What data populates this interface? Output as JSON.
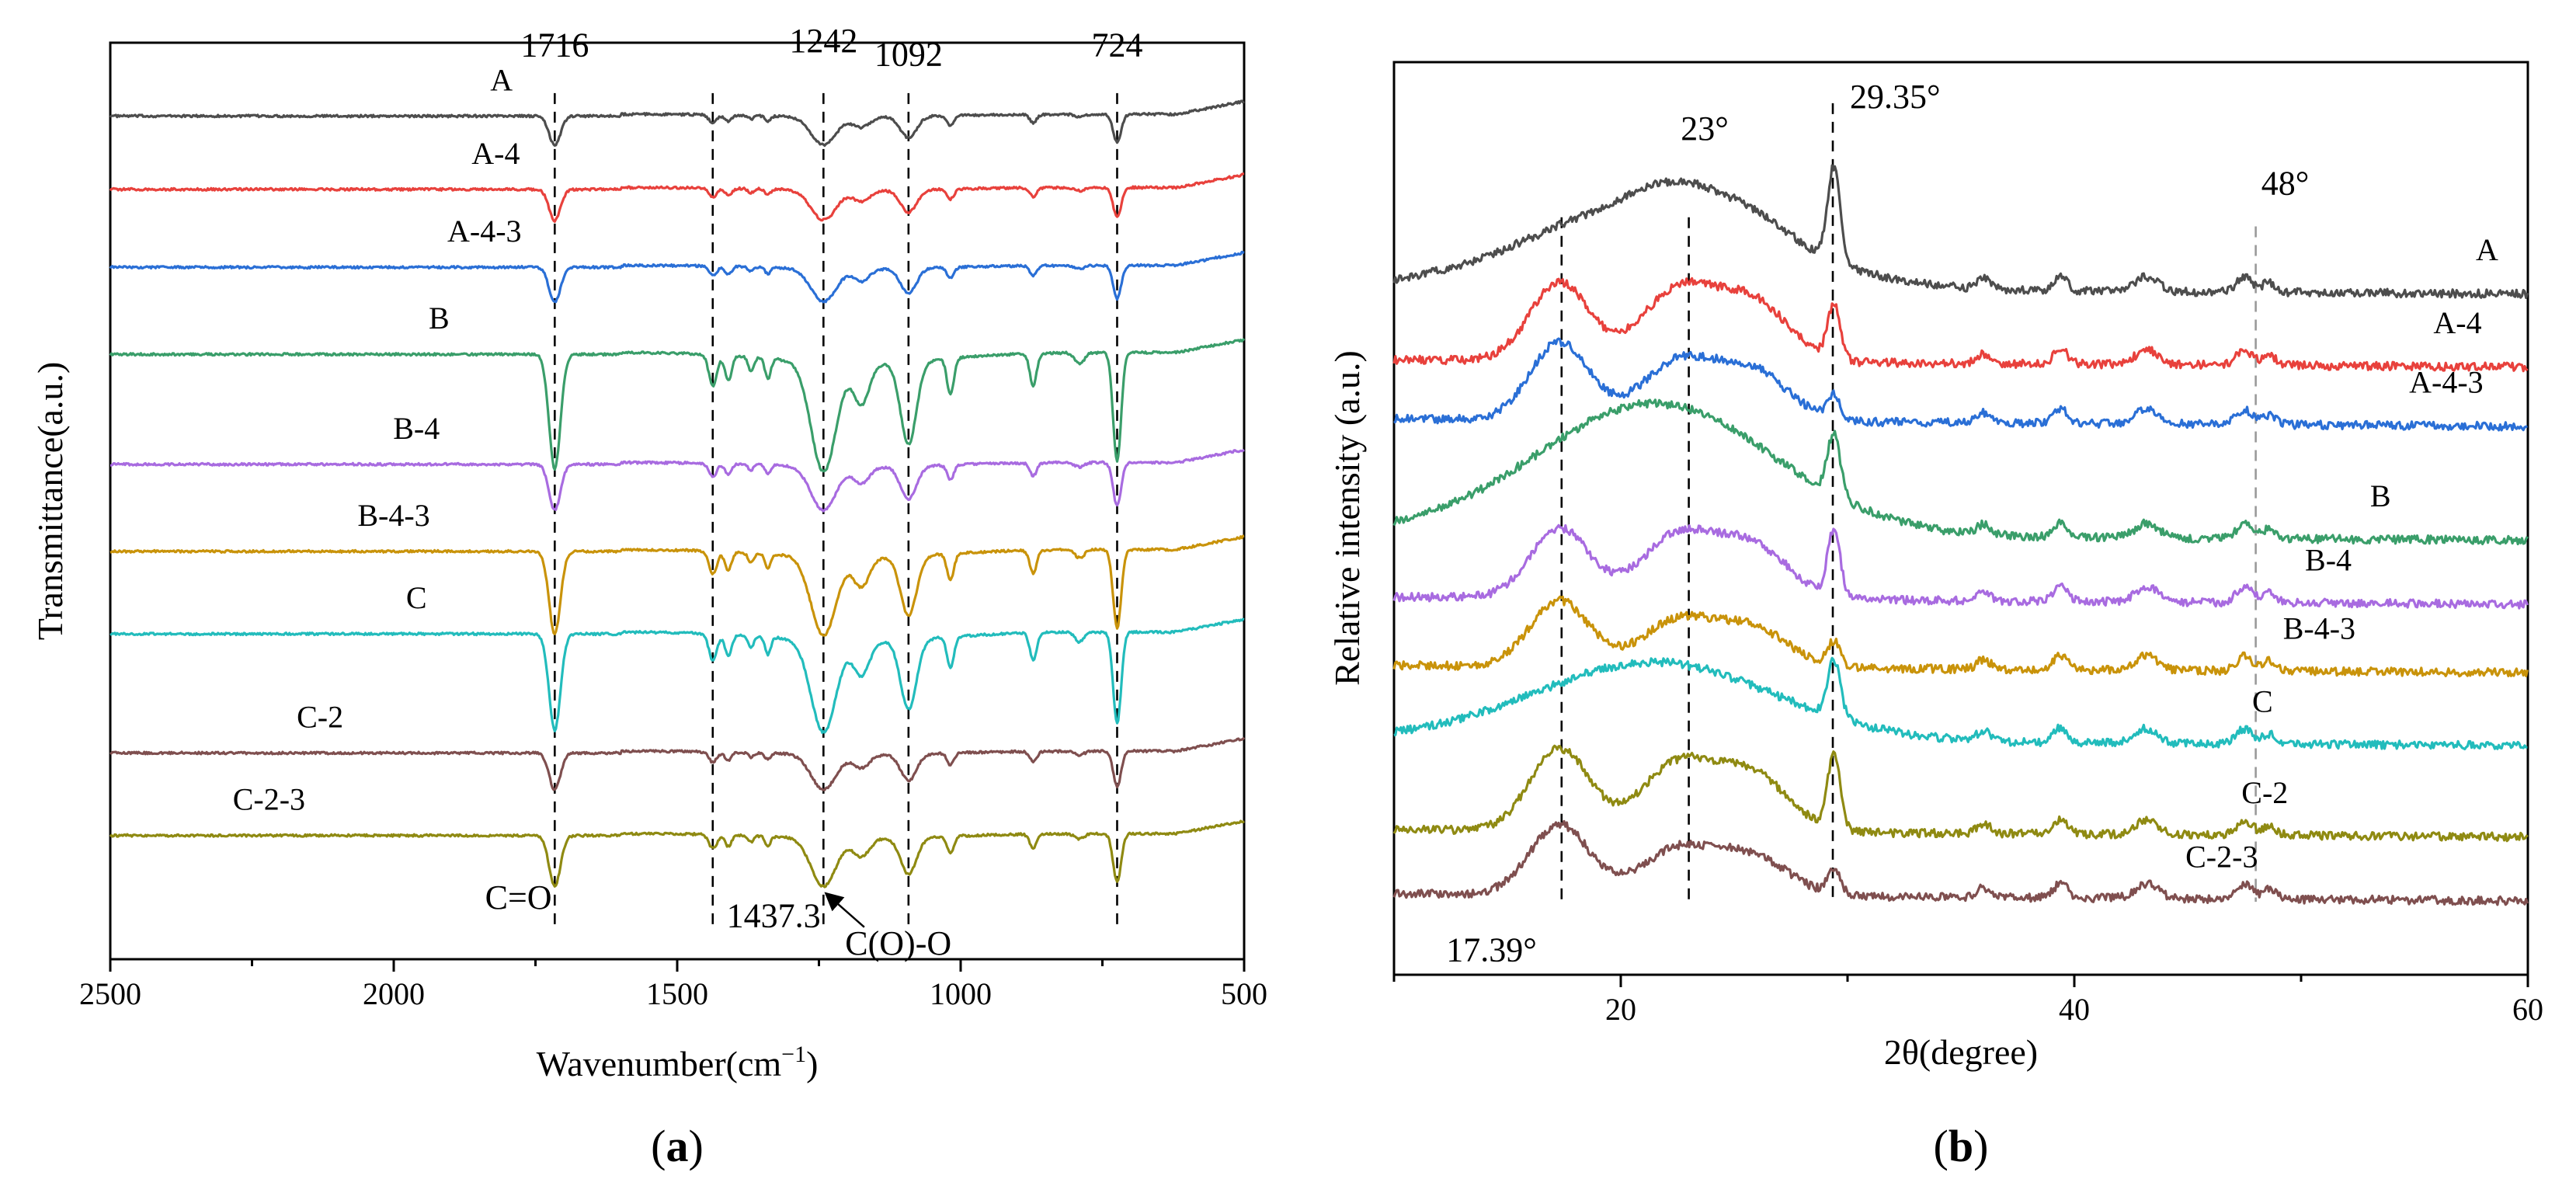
{
  "figure": {
    "panel_a_label_open": "(",
    "panel_a_label_letter": "a",
    "panel_a_label_close": ")",
    "panel_b_label_open": "(",
    "panel_b_label_letter": "b",
    "panel_b_label_close": ")"
  },
  "chart_data": [
    {
      "id": "ftir",
      "type": "line",
      "panel": "a",
      "title": "",
      "xlabel": "Wavenumber(cm",
      "xlabel_sup": "−1",
      "xlabel_tail": ")",
      "ylabel": "Transmittance(a.u.)",
      "xlim": [
        2500,
        500
      ],
      "xticks": [
        2500,
        2000,
        1500,
        1000,
        500
      ],
      "ylim": [
        0,
        10
      ],
      "series_order_top_to_bottom": [
        "A",
        "A-4",
        "A-4-3",
        "B",
        "B-4",
        "B-4-3",
        "C",
        "C-2",
        "C-2-3"
      ],
      "series": [
        {
          "name": "A",
          "label": "A",
          "color": "#4d4d4d",
          "baseline": 9.2,
          "scale": 0.32,
          "label_wavenumber": 1810
        },
        {
          "name": "A-4",
          "label": "A-4",
          "color": "#e8413c",
          "baseline": 8.4,
          "scale": 0.34,
          "label_wavenumber": 1820
        },
        {
          "name": "A-4-3",
          "label": "A-4-3",
          "color": "#2a6fd6",
          "baseline": 7.55,
          "scale": 0.38,
          "label_wavenumber": 1840
        },
        {
          "name": "B",
          "label": "B",
          "color": "#3a9e6a",
          "baseline": 6.6,
          "scale": 1.25,
          "label_wavenumber": 1920
        },
        {
          "name": "B-4",
          "label": "B-4",
          "color": "#a86be0",
          "baseline": 5.4,
          "scale": 0.5,
          "label_wavenumber": 1960
        },
        {
          "name": "B-4-3",
          "label": "B-4-3",
          "color": "#c9930a",
          "baseline": 4.45,
          "scale": 0.9,
          "label_wavenumber": 2000
        },
        {
          "name": "C",
          "label": "C",
          "color": "#22bcbc",
          "baseline": 3.55,
          "scale": 1.05,
          "label_wavenumber": 1960
        },
        {
          "name": "C-2",
          "label": "C-2",
          "color": "#7f4f4f",
          "baseline": 2.25,
          "scale": 0.4,
          "label_wavenumber": 2130
        },
        {
          "name": "C-2-3",
          "label": "C-2-3",
          "color": "#8f8a12",
          "baseline": 1.35,
          "scale": 0.55,
          "label_wavenumber": 2220
        }
      ],
      "peak_lines": [
        1716,
        1437.3,
        1242,
        1092,
        724
      ],
      "annotations": [
        {
          "text": "1716",
          "x": 1716,
          "y": 9.85
        },
        {
          "text": "1242",
          "x": 1242,
          "y": 9.9
        },
        {
          "text": "1092",
          "x": 1092,
          "y": 9.75
        },
        {
          "text": "724",
          "x": 724,
          "y": 9.85
        },
        {
          "text": "C=O",
          "x": 1780,
          "y": 0.55
        },
        {
          "text": "1437.3",
          "x": 1330,
          "y": 0.35
        },
        {
          "text": "C(O)-O",
          "x": 1110,
          "y": 0.05
        }
      ]
    },
    {
      "id": "xrd",
      "type": "line",
      "panel": "b",
      "title": "",
      "xlabel": "2θ(degree)",
      "ylabel": "Relative intensity (a.u.)",
      "xlim": [
        10,
        60
      ],
      "xticks": [
        20,
        40,
        60
      ],
      "ylim": [
        0,
        10
      ],
      "series_order_top_to_bottom": [
        "A",
        "A-4",
        "A-4-3",
        "B",
        "B-4",
        "B-4-3",
        "C",
        "C-2",
        "C-2-3"
      ],
      "series": [
        {
          "name": "A",
          "label": "A",
          "color": "#4d4d4d",
          "baseline": 7.5,
          "amorphous": 1.05,
          "peak17": 0.0,
          "peak23": 0.25,
          "peak29": 1.15,
          "label_theta": 58.2
        },
        {
          "name": "A-4",
          "label": "A-4",
          "color": "#e8413c",
          "baseline": 6.7,
          "amorphous": 0.0,
          "peak17": 0.95,
          "peak23": 0.85,
          "peak29": 0.65,
          "label_theta": 56.9
        },
        {
          "name": "A-4-3",
          "label": "A-4-3",
          "color": "#2a6fd6",
          "baseline": 6.05,
          "amorphous": 0.0,
          "peak17": 0.95,
          "peak23": 0.7,
          "peak29": 0.3,
          "label_theta": 56.4
        },
        {
          "name": "B",
          "label": "B",
          "color": "#3a9e6a",
          "baseline": 4.8,
          "amorphous": 1.6,
          "peak17": 0.0,
          "peak23": 0.0,
          "peak29": 0.75,
          "label_theta": 53.5
        },
        {
          "name": "B-4",
          "label": "B-4",
          "color": "#a86be0",
          "baseline": 4.1,
          "amorphous": 0.0,
          "peak17": 0.85,
          "peak23": 0.75,
          "peak29": 0.8,
          "label_theta": 51.2
        },
        {
          "name": "B-4-3",
          "label": "B-4-3",
          "color": "#c9930a",
          "baseline": 3.35,
          "amorphous": 0.0,
          "peak17": 0.8,
          "peak23": 0.55,
          "peak29": 0.3,
          "label_theta": 50.8
        },
        {
          "name": "C",
          "label": "C",
          "color": "#22bcbc",
          "baseline": 2.55,
          "amorphous": 0.95,
          "peak17": 0.0,
          "peak23": 0.0,
          "peak29": 0.7,
          "label_theta": 48.3
        },
        {
          "name": "C-2",
          "label": "C-2",
          "color": "#8f8a12",
          "baseline": 1.55,
          "amorphous": 0.0,
          "peak17": 1.0,
          "peak23": 0.8,
          "peak29": 0.9,
          "label_theta": 48.4
        },
        {
          "name": "C-2-3",
          "label": "C-2-3",
          "color": "#7f4f4f",
          "baseline": 0.85,
          "amorphous": 0.0,
          "peak17": 0.85,
          "peak23": 0.55,
          "peak29": 0.3,
          "label_theta": 46.5
        }
      ],
      "peak_lines": [
        {
          "theta": 17.39,
          "style": "dark"
        },
        {
          "theta": 23,
          "style": "dark"
        },
        {
          "theta": 29.35,
          "style": "dark"
        },
        {
          "theta": 48,
          "style": "gray"
        }
      ],
      "annotations": [
        {
          "text": "23°",
          "x": 23.7,
          "y": 9.15
        },
        {
          "text": "29.35°",
          "x": 32.1,
          "y": 9.5
        },
        {
          "text": "48°",
          "x": 49.3,
          "y": 8.55
        },
        {
          "text": "17.39°",
          "x": 14.3,
          "y": 0.15
        }
      ]
    }
  ]
}
